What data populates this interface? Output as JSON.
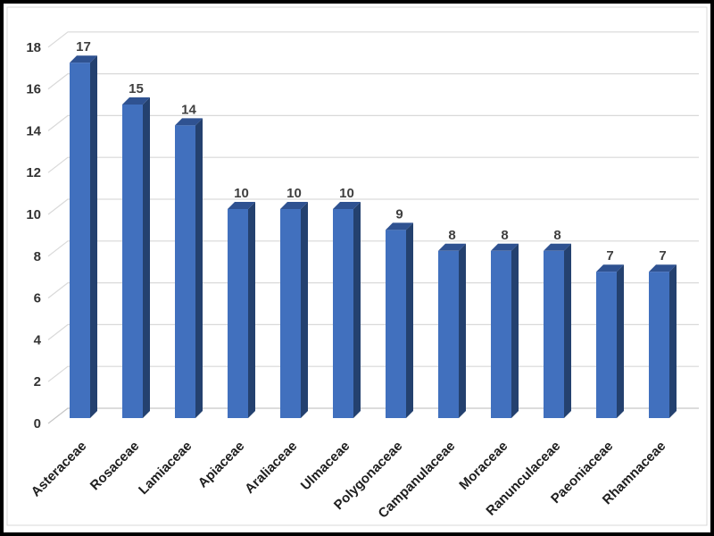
{
  "chart_data": {
    "type": "bar",
    "subtype": "3d-clustered-column",
    "title": "",
    "xlabel": "",
    "ylabel": "",
    "categories": [
      "Asteraceae",
      "Rosaceae",
      "Lamiaceae",
      "Apiaceae",
      "Araliaceae",
      "Ulmaceae",
      "Polygonaceae",
      "Campanulaceae",
      "Moraceae",
      "Ranunculaceae",
      "Paeoniaceae",
      "Rhamnaceae"
    ],
    "values": [
      17,
      15,
      14,
      10,
      10,
      10,
      9,
      8,
      8,
      8,
      7,
      7
    ],
    "ylim": [
      0,
      18
    ],
    "yticks": [
      0,
      2,
      4,
      6,
      8,
      10,
      12,
      14,
      16,
      18
    ],
    "grid": true,
    "legend": false,
    "data_labels_shown": true,
    "category_label_rotation_deg": 45,
    "colors": {
      "bar_front": "#4170BE",
      "bar_side": "#24416F",
      "bar_top": "#2F5291",
      "gridline": "#D9D9D9",
      "baseline": "#C6C6C6",
      "tick_label": "#333333",
      "category_label": "#1F1F1F",
      "value_label": "#3F3F3F",
      "frame_border": "#D9D9D9",
      "outer_border": "#000000",
      "background": "#FFFFFF"
    }
  }
}
